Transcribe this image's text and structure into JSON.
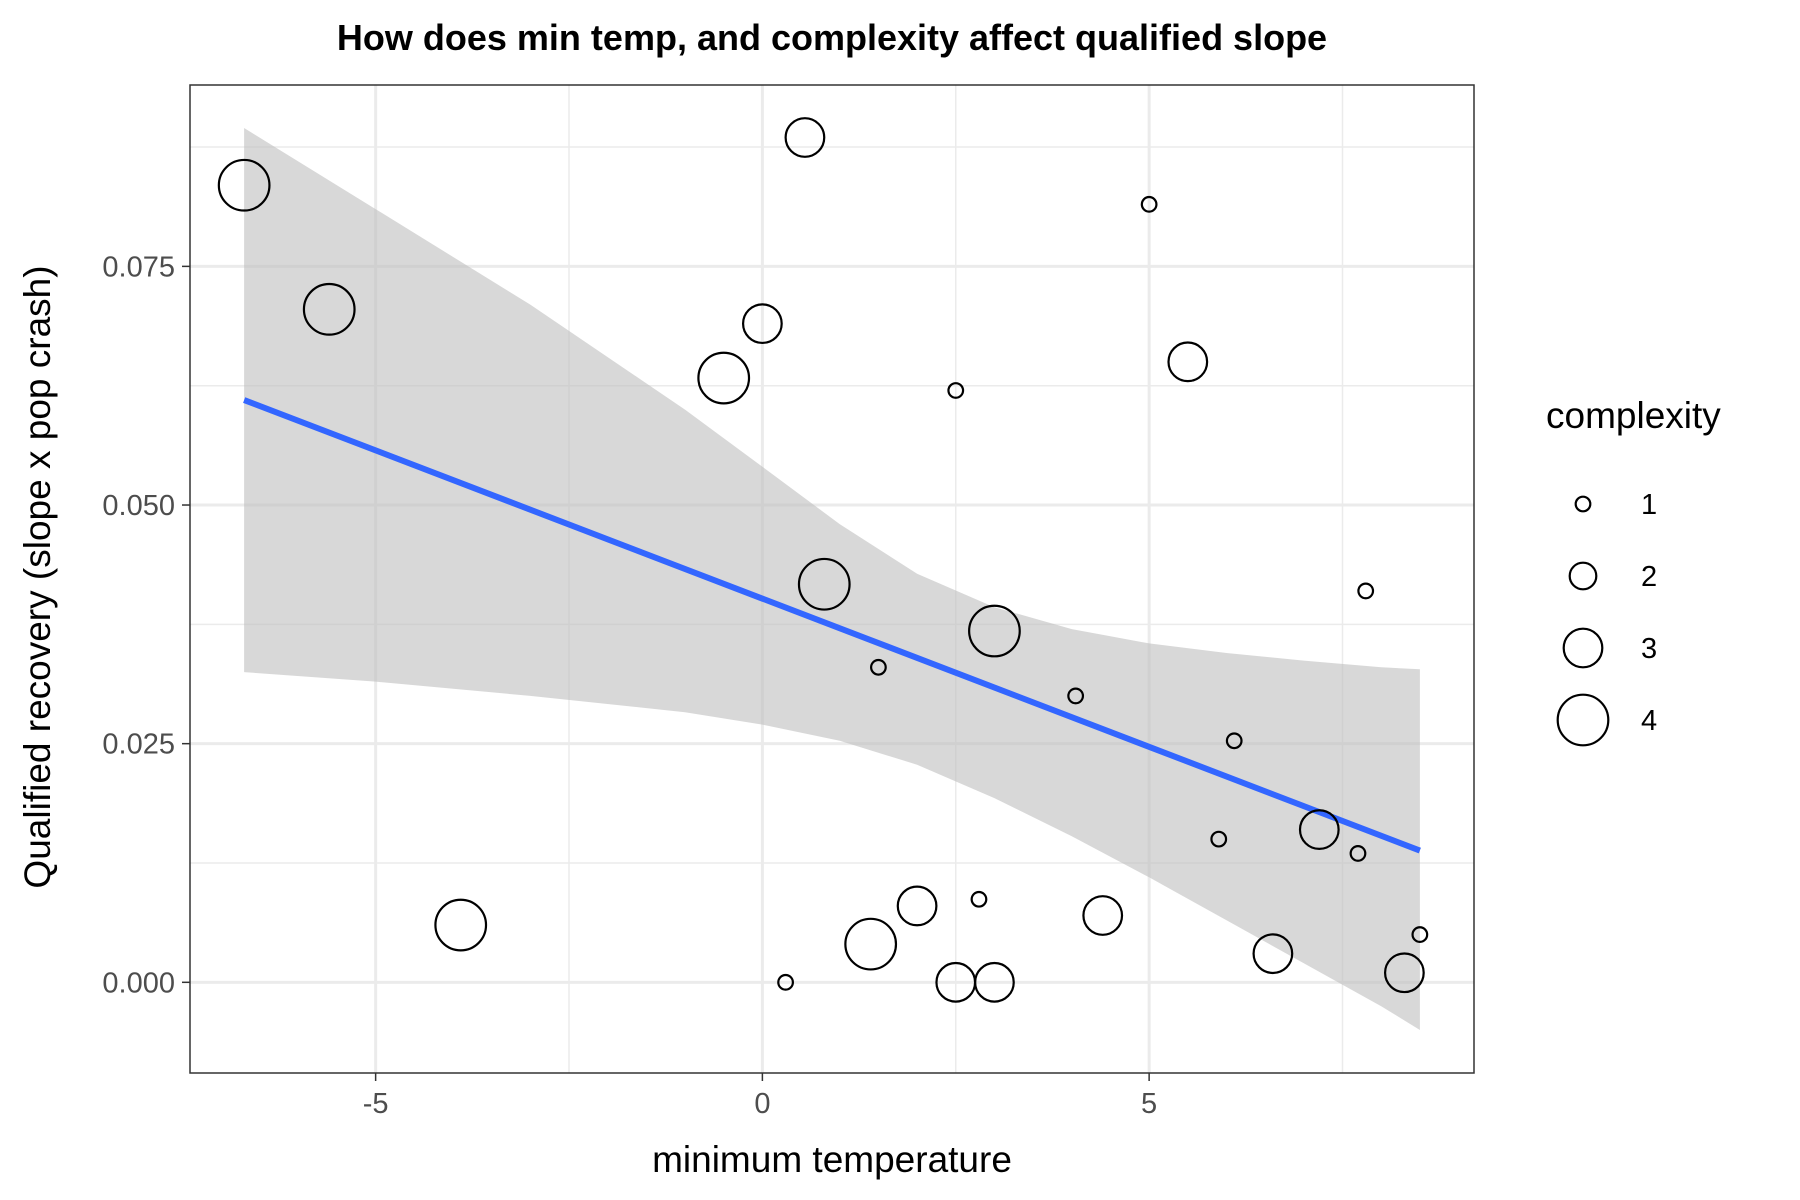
{
  "chart_data": {
    "type": "scatter",
    "title": "How does min temp, and complexity affect qualified slope",
    "xlabel": "minimum temperature",
    "ylabel": "Qualified recovery (slope x pop crash)",
    "xlim": [
      -7.4,
      9.2
    ],
    "ylim": [
      -0.0095,
      0.094
    ],
    "x_ticks": [
      -5,
      0,
      5
    ],
    "x_tick_labels": [
      "-5",
      "0",
      "5"
    ],
    "y_ticks": [
      0,
      0.025,
      0.05,
      0.075
    ],
    "y_tick_labels": [
      "0.000",
      "0.025",
      "0.050",
      "0.075"
    ],
    "grid": true,
    "legend": {
      "title": "complexity",
      "placement": "right",
      "entries": [
        {
          "label": "1",
          "value": 1
        },
        {
          "label": "2",
          "value": 2
        },
        {
          "label": "3",
          "value": 3
        },
        {
          "label": "4",
          "value": 4
        }
      ]
    },
    "points": [
      {
        "x": -6.7,
        "y": 0.0835,
        "complexity": 4
      },
      {
        "x": -5.6,
        "y": 0.0705,
        "complexity": 4
      },
      {
        "x": -3.9,
        "y": 0.006,
        "complexity": 4
      },
      {
        "x": -0.5,
        "y": 0.0633,
        "complexity": 4
      },
      {
        "x": 0.0,
        "y": 0.069,
        "complexity": 3
      },
      {
        "x": 0.55,
        "y": 0.0885,
        "complexity": 3
      },
      {
        "x": 0.8,
        "y": 0.0417,
        "complexity": 4
      },
      {
        "x": 0.3,
        "y": 0.0,
        "complexity": 1
      },
      {
        "x": 1.4,
        "y": 0.004,
        "complexity": 4
      },
      {
        "x": 1.5,
        "y": 0.033,
        "complexity": 1
      },
      {
        "x": 2.0,
        "y": 0.008,
        "complexity": 3
      },
      {
        "x": 2.5,
        "y": 0.062,
        "complexity": 1
      },
      {
        "x": 2.5,
        "y": 0.0,
        "complexity": 3
      },
      {
        "x": 2.8,
        "y": 0.0087,
        "complexity": 1
      },
      {
        "x": 3.0,
        "y": 0.0368,
        "complexity": 4
      },
      {
        "x": 3.0,
        "y": 0.0,
        "complexity": 3
      },
      {
        "x": 4.05,
        "y": 0.03,
        "complexity": 1
      },
      {
        "x": 4.4,
        "y": 0.007,
        "complexity": 3
      },
      {
        "x": 5.0,
        "y": 0.0815,
        "complexity": 1
      },
      {
        "x": 5.5,
        "y": 0.065,
        "complexity": 3
      },
      {
        "x": 5.9,
        "y": 0.015,
        "complexity": 1
      },
      {
        "x": 6.1,
        "y": 0.0253,
        "complexity": 1
      },
      {
        "x": 6.6,
        "y": 0.003,
        "complexity": 3
      },
      {
        "x": 7.2,
        "y": 0.016,
        "complexity": 3
      },
      {
        "x": 7.7,
        "y": 0.0135,
        "complexity": 1
      },
      {
        "x": 7.8,
        "y": 0.041,
        "complexity": 1
      },
      {
        "x": 8.3,
        "y": 0.001,
        "complexity": 3
      },
      {
        "x": 8.5,
        "y": 0.005,
        "complexity": 1
      }
    ],
    "fit_line": {
      "method": "linear",
      "color": "#3366FF",
      "x": [
        -6.7,
        8.5
      ],
      "y": [
        0.061,
        0.0138
      ]
    },
    "confidence_band": {
      "color": "#BEBEBE",
      "x": [
        -6.7,
        -5,
        -3,
        -1,
        0,
        1,
        2,
        3,
        4,
        5,
        6,
        7,
        8,
        8.5
      ],
      "lower": [
        0.0325,
        0.0315,
        0.03,
        0.0283,
        0.027,
        0.0253,
        0.0228,
        0.0193,
        0.0153,
        0.011,
        0.0065,
        0.002,
        -0.0025,
        -0.005
      ],
      "upper": [
        0.0895,
        0.081,
        0.071,
        0.06,
        0.054,
        0.048,
        0.0428,
        0.0393,
        0.037,
        0.0355,
        0.0345,
        0.0337,
        0.033,
        0.0328
      ]
    }
  }
}
